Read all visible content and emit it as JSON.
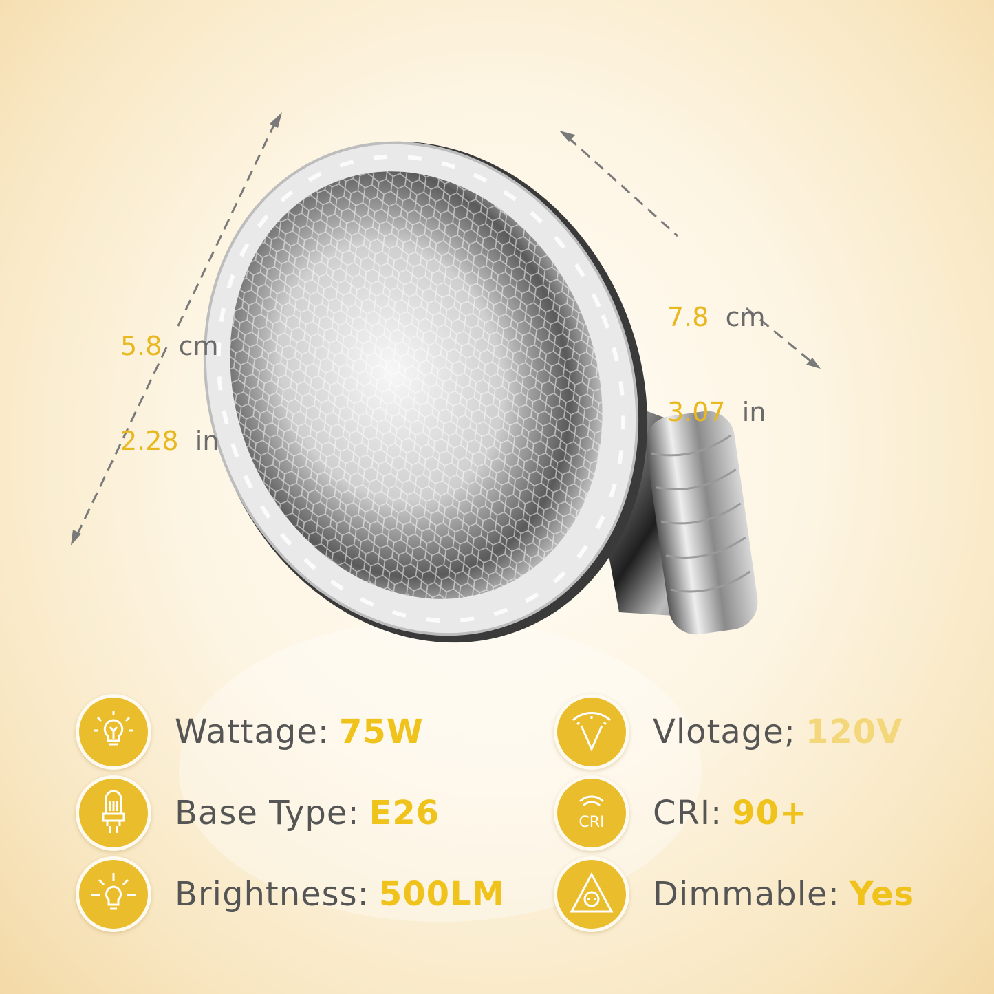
{
  "dimensions": {
    "height": {
      "cm_value": "5.8",
      "cm_unit": "cm",
      "in_value": "2.28",
      "in_unit": "in"
    },
    "width": {
      "cm_value": "7.8",
      "cm_unit": "cm",
      "in_value": "3.07",
      "in_unit": "in"
    }
  },
  "specs": [
    {
      "icon": "lightbulb-icon",
      "label": "Wattage:",
      "value": "75W"
    },
    {
      "icon": "base-type-icon",
      "label": "Base Type:",
      "value": "E26"
    },
    {
      "icon": "brightness-icon",
      "label": "Brightness:",
      "value": "500LM"
    },
    {
      "icon": "voltage-gauge-icon",
      "label": "Vlotage;",
      "value": "120V"
    },
    {
      "icon": "cri-icon",
      "label": "CRI:",
      "value": "90+"
    },
    {
      "icon": "dimmable-icon",
      "label": "Dimmable:",
      "value": "Yes"
    }
  ],
  "colors": {
    "accent": "#e9bd2c",
    "value_text": "#f0c21c",
    "label_text": "#555555"
  }
}
